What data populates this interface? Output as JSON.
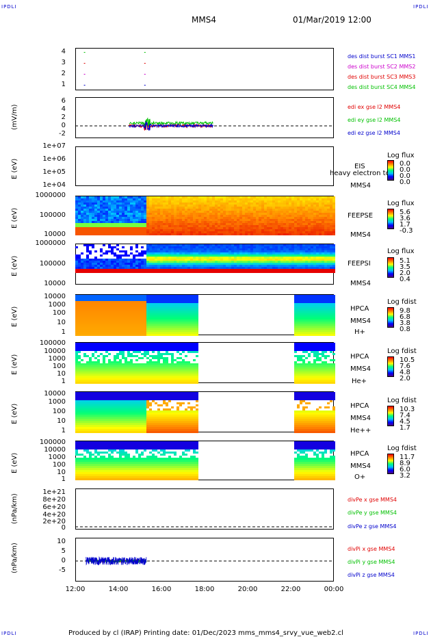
{
  "corner_label": "IPDLI",
  "header": {
    "title": "MMS4",
    "date": "01/Mar/2019 12:00"
  },
  "footer": {
    "text": "Produced by cl (IRAP)   Printing date: 01/Dec/2023   mms_mms4_srvy_vue_web2.cl"
  },
  "colors": {
    "red": "#e00000",
    "green": "#00c000",
    "blue": "#0000cc",
    "magenta": "#cc00cc"
  },
  "chart_data": {
    "type": "multi-panel time series",
    "xaxis": {
      "ticks": [
        "12:00",
        "14:00",
        "16:00",
        "18:00",
        "20:00",
        "22:00",
        "00:00"
      ]
    },
    "panels": [
      {
        "id": "burst",
        "ylabel": "",
        "yticks": [
          "4",
          "3",
          "2",
          "1"
        ],
        "legend": [
          {
            "text": "des dist burst SC1 MMS1",
            "color": "#0000cc"
          },
          {
            "text": "des dist burst SC2 MMS2",
            "color": "#cc00cc"
          },
          {
            "text": "des dist burst SC3 MMS3",
            "color": "#e00000"
          },
          {
            "text": "des dist burst SC4 MMS4",
            "color": "#00c000"
          }
        ]
      },
      {
        "id": "edi",
        "ylabel": "(mV/m)",
        "yticks": [
          "6",
          "4",
          "2",
          "0",
          "-2"
        ],
        "legend": [
          {
            "text": "edi ex gse l2 MMS4",
            "color": "#e00000"
          },
          {
            "text": "edi ey gse l2 MMS4",
            "color": "#00c000"
          },
          {
            "text": "edi ez gse l2 MMS4",
            "color": "#0000cc"
          }
        ]
      },
      {
        "id": "eis",
        "ylabel": "E (eV)",
        "yticks": [
          "1e+07",
          "1e+06",
          "1e+05",
          "1e+04"
        ],
        "right": [
          "EIS",
          "heavy electron to",
          "MMS4"
        ],
        "cbar": {
          "title": "Log flux",
          "values": [
            "0.0",
            "0.0",
            "0.0",
            "0.0"
          ]
        }
      },
      {
        "id": "feepse",
        "ylabel": "E (eV)",
        "yticks": [
          "1000000",
          "100000",
          "10000"
        ],
        "right": [
          "FEEPSE",
          "MMS4"
        ],
        "cbar": {
          "title": "Log flux",
          "values": [
            "5.6",
            "3.6",
            "1.7",
            "-0.3"
          ]
        }
      },
      {
        "id": "feepsi",
        "ylabel": "E (eV)",
        "yticks": [
          "1000000",
          "100000",
          "10000"
        ],
        "right": [
          "FEEPSI",
          "MMS4"
        ],
        "cbar": {
          "title": "Log flux",
          "values": [
            "5.1",
            "3.5",
            "2.0",
            "0.4"
          ]
        }
      },
      {
        "id": "hpca_h",
        "ylabel": "E (eV)",
        "yticks": [
          "10000",
          "1000",
          "100",
          "10",
          "1"
        ],
        "right": [
          "HPCA",
          "MMS4",
          "H+"
        ],
        "cbar": {
          "title": "Log fdist",
          "values": [
            "9.8",
            "6.8",
            "3.8",
            "0.8"
          ]
        }
      },
      {
        "id": "hpca_he",
        "ylabel": "E (eV)",
        "yticks": [
          "100000",
          "10000",
          "1000",
          "100",
          "10",
          "1"
        ],
        "right": [
          "HPCA",
          "MMS4",
          "He+"
        ],
        "cbar": {
          "title": "Log fdist",
          "values": [
            "10.5",
            "7.6",
            "4.8",
            "2.0"
          ]
        }
      },
      {
        "id": "hpca_hepp",
        "ylabel": "E (eV)",
        "yticks": [
          "10000",
          "1000",
          "100",
          "10",
          "1"
        ],
        "right": [
          "HPCA",
          "MMS4",
          "He++"
        ],
        "cbar": {
          "title": "Log fdist",
          "values": [
            "10.3",
            "7.4",
            "4.5",
            "1.7"
          ]
        }
      },
      {
        "id": "hpca_o",
        "ylabel": "E (eV)",
        "yticks": [
          "100000",
          "10000",
          "1000",
          "100",
          "10",
          "1"
        ],
        "right": [
          "HPCA",
          "MMS4",
          "O+"
        ],
        "cbar": {
          "title": "Log fdist",
          "values": [
            "11.7",
            "8.9",
            "6.0",
            "3.2"
          ]
        }
      },
      {
        "id": "divpe",
        "ylabel": "(nPa/km)",
        "yticks": [
          "1e+21",
          "8e+20",
          "6e+20",
          "4e+20",
          "2e+20",
          "0"
        ],
        "legend": [
          {
            "text": "divPe x gse MMS4",
            "color": "#e00000"
          },
          {
            "text": "divPe y gse MMS4",
            "color": "#00c000"
          },
          {
            "text": "divPe z gse MMS4",
            "color": "#0000cc"
          }
        ]
      },
      {
        "id": "divpi",
        "ylabel": "(nPa/km)",
        "yticks": [
          "10",
          "5",
          "0",
          "-5"
        ],
        "legend": [
          {
            "text": "divPi x gse MMS4",
            "color": "#e00000"
          },
          {
            "text": "divPi y gse MMS4",
            "color": "#00c000"
          },
          {
            "text": "divPi z gse MMS4",
            "color": "#0000cc"
          }
        ]
      }
    ]
  }
}
